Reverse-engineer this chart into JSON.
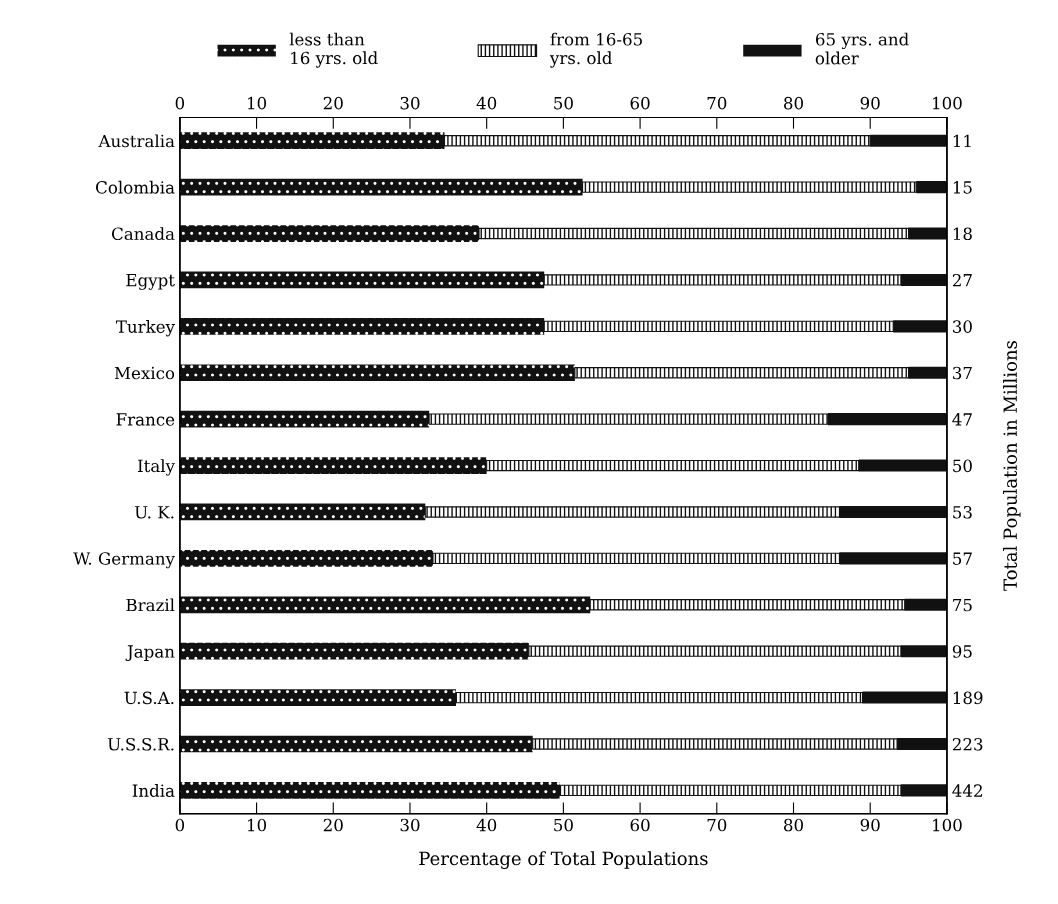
{
  "chart_data": {
    "type": "bar",
    "orientation": "horizontal",
    "stacked": true,
    "xlabel": "Percentage of Total Populations",
    "y2label": "Total Population in Millions",
    "categories": [
      "Australia",
      "Colombia",
      "Canada",
      "Egypt",
      "Turkey",
      "Mexico",
      "France",
      "Italy",
      "U. K.",
      "W. Germany",
      "Brazil",
      "Japan",
      "U.S.A.",
      "U.S.S.R.",
      "India"
    ],
    "y2_categories": [
      "11",
      "15",
      "18",
      "27",
      "30",
      "37",
      "47",
      "50",
      "53",
      "57",
      "75",
      "95",
      "189",
      "223",
      "442"
    ],
    "series": [
      {
        "name": "less than\n16 yrs. old",
        "color": "#111111",
        "line_style": "dashed",
        "values": [
          34.5,
          52.5,
          39,
          47.5,
          47.5,
          51.5,
          32.5,
          40,
          32,
          33,
          53.5,
          45.5,
          36,
          46,
          49.5
        ]
      },
      {
        "name": "from 16-65\nyrs. old",
        "color": "#111111",
        "line_style": "dotted",
        "values": [
          55.5,
          43.5,
          56,
          46.5,
          45.5,
          43.5,
          52,
          48.5,
          54,
          53,
          41,
          48.5,
          53,
          47.5,
          44.5
        ]
      },
      {
        "name": "65 yrs. and\nolder",
        "color": "#111111",
        "line_style": "solid",
        "values": [
          10,
          4,
          5,
          6,
          7,
          5,
          15.5,
          11.5,
          14,
          14,
          5.5,
          6,
          11,
          6.5,
          6
        ]
      }
    ],
    "xlim": [
      0,
      100
    ],
    "xticks": [
      0,
      10,
      20,
      30,
      40,
      50,
      60,
      70,
      80,
      90,
      100
    ],
    "x2lim": [
      0,
      100
    ],
    "x2ticks": [
      0,
      10,
      20,
      30,
      40,
      50,
      60,
      70,
      80,
      90,
      100
    ],
    "grid": false,
    "legend": "top"
  }
}
